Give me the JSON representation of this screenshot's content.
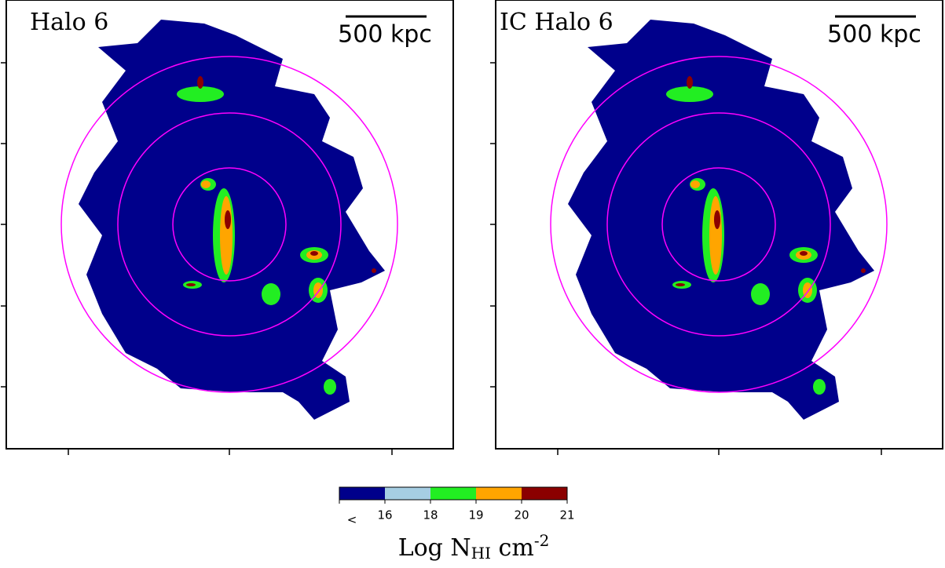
{
  "panels": [
    {
      "title": "Halo 6",
      "scalebar": "500 kpc"
    },
    {
      "title": "IC Halo 6",
      "scalebar": "500 kpc"
    }
  ],
  "colorbar": {
    "colors": [
      "#00008b",
      "#a6cee3",
      "#22ee22",
      "#ffa500",
      "#8b0000"
    ],
    "tick_labels": [
      "<",
      "16",
      "18",
      "19",
      "20",
      "21"
    ],
    "label": {
      "base": "Log N",
      "subscript": "HI",
      "unit": " cm",
      "superscript": "-2"
    }
  }
}
